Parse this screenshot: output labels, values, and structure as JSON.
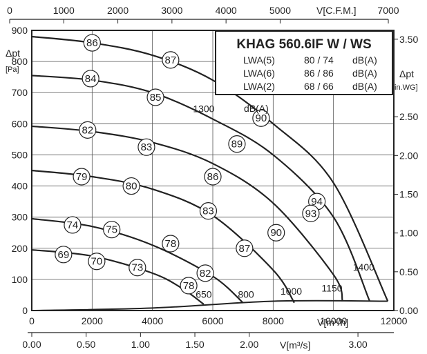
{
  "chart_data": {
    "type": "line",
    "title": "KHAG 560.6IF W / WS",
    "axes": {
      "x_bottom": {
        "label": "V[m³/h]",
        "range": [
          0,
          12000
        ],
        "ticks": [
          "0",
          "2000",
          "4000",
          "6000",
          "8000",
          "10000",
          "12000"
        ]
      },
      "x_top": {
        "label": "V[C.F.M.]",
        "range": [
          0,
          7000
        ],
        "ticks": [
          "0",
          "1000",
          "2000",
          "3000",
          "4000",
          "5000",
          "7000"
        ]
      },
      "x_bottom2": {
        "label": "V[m³/s]",
        "range": [
          0,
          3.33
        ],
        "ticks": [
          "0.00",
          "0.50",
          "1.00",
          "1.50",
          "2.00",
          "3.00"
        ]
      },
      "y_left": {
        "label_line1": "Δpt",
        "label_line2": "[Pa]",
        "range": [
          0,
          900
        ],
        "ticks": [
          "0",
          "100",
          "200",
          "300",
          "400",
          "500",
          "600",
          "700",
          "800",
          "900"
        ]
      },
      "y_right": {
        "label_line1": "Δpt",
        "label_line2": "[in.WG]",
        "range": [
          0,
          3.614
        ],
        "ticks": [
          "0.00",
          "0.50",
          "1.00",
          "1.50",
          "2.00",
          "2.50",
          "3.50"
        ]
      }
    },
    "grid": true,
    "lwa_table": [
      {
        "label": "LWA(5)",
        "value": "80 / 74",
        "unit": "dB(A)"
      },
      {
        "label": "LWA(6)",
        "value": "86 / 86",
        "unit": "dB(A)"
      },
      {
        "label": "LWA(2)",
        "value": "68 / 66",
        "unit": "dB(A)"
      }
    ],
    "db_unit": "dB(A)",
    "series": [
      {
        "name": "650",
        "x": [
          0,
          2000,
          4000,
          5000,
          5700
        ],
        "y": [
          195,
          175,
          120,
          70,
          20
        ]
      },
      {
        "name": "800",
        "x": [
          0,
          2000,
          4000,
          6000,
          7000
        ],
        "y": [
          295,
          270,
          210,
          110,
          25
        ]
      },
      {
        "name": "1000",
        "x": [
          0,
          2000,
          4000,
          6000,
          8000,
          8700
        ],
        "y": [
          450,
          430,
          390,
          305,
          130,
          25
        ]
      },
      {
        "name": "1150",
        "x": [
          0,
          2000,
          4000,
          6000,
          8000,
          10000,
          10300
        ],
        "y": [
          592,
          575,
          540,
          472,
          345,
          115,
          30
        ]
      },
      {
        "name": "1300",
        "x": [
          0,
          2000,
          4000,
          6000,
          8000,
          10000,
          11200
        ],
        "y": [
          755,
          740,
          700,
          615,
          500,
          300,
          30
        ]
      },
      {
        "name": "1400",
        "x": [
          0,
          2000,
          4000,
          6000,
          8000,
          10000,
          11800
        ],
        "y": [
          880,
          860,
          820,
          740,
          600,
          410,
          30
        ]
      }
    ],
    "system_curve": {
      "x": [
        0,
        4000,
        8000,
        11800
      ],
      "y": [
        0,
        8,
        30,
        30
      ]
    },
    "noise_labels": [
      {
        "text": "86",
        "x": 2000,
        "y": 860
      },
      {
        "text": "87",
        "x": 4600,
        "y": 805
      },
      {
        "text": "84",
        "x": 1950,
        "y": 745
      },
      {
        "text": "85",
        "x": 4100,
        "y": 685
      },
      {
        "text": "90",
        "x": 7600,
        "y": 618
      },
      {
        "text": "82",
        "x": 1850,
        "y": 580
      },
      {
        "text": "83",
        "x": 3800,
        "y": 525
      },
      {
        "text": "89",
        "x": 6800,
        "y": 535
      },
      {
        "text": "79",
        "x": 1650,
        "y": 430
      },
      {
        "text": "80",
        "x": 3300,
        "y": 400
      },
      {
        "text": "86",
        "x": 6000,
        "y": 430
      },
      {
        "text": "83",
        "x": 5850,
        "y": 320
      },
      {
        "text": "94",
        "x": 9450,
        "y": 350
      },
      {
        "text": "93",
        "x": 9250,
        "y": 312
      },
      {
        "text": "74",
        "x": 1350,
        "y": 275
      },
      {
        "text": "75",
        "x": 2650,
        "y": 260
      },
      {
        "text": "90",
        "x": 8100,
        "y": 250
      },
      {
        "text": "78",
        "x": 4600,
        "y": 215
      },
      {
        "text": "87",
        "x": 7050,
        "y": 200
      },
      {
        "text": "69",
        "x": 1050,
        "y": 180
      },
      {
        "text": "70",
        "x": 2150,
        "y": 158
      },
      {
        "text": "73",
        "x": 3500,
        "y": 138
      },
      {
        "text": "82",
        "x": 5750,
        "y": 120
      },
      {
        "text": "78",
        "x": 5200,
        "y": 80
      }
    ],
    "rpm_labels": [
      {
        "text": "1300",
        "x": 5700,
        "y": 648
      },
      {
        "text": "1400",
        "x": 11000,
        "y": 140
      },
      {
        "text": "1150",
        "x": 9950,
        "y": 72
      },
      {
        "text": "1000",
        "x": 8600,
        "y": 62
      },
      {
        "text": "800",
        "x": 7100,
        "y": 52
      },
      {
        "text": "650",
        "x": 5700,
        "y": 52
      }
    ]
  }
}
